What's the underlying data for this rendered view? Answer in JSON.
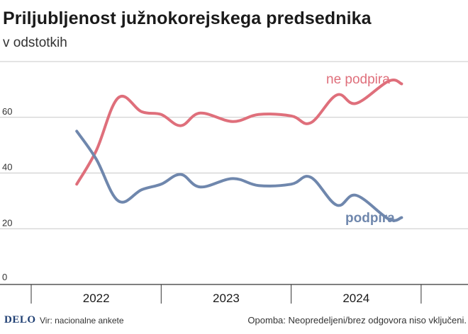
{
  "title": "Priljubljenost južnokorejskega predsednika",
  "subtitle": "v odstotkih",
  "source": "Vir: nacionalne ankete",
  "note": "Opomba: Neopredeljeni/brez odgovora niso vključeni.",
  "logo": "DELO",
  "colors": {
    "not_support": "#df6f7b",
    "support": "#6f87ad",
    "grid": "#c8c8c8",
    "text": "#1a1a1a"
  },
  "chart_data": {
    "type": "line",
    "title": "Priljubljenost južnokorejskega predsednika",
    "subtitle": "v odstotkih",
    "xlabel": "",
    "ylabel": "",
    "ylim": [
      0,
      80
    ],
    "yticks": [
      0,
      20,
      40,
      60
    ],
    "grid": true,
    "x_periods": [
      "2022",
      "2023",
      "2024"
    ],
    "series": [
      {
        "name": "ne podpira",
        "color": "#df6f7b",
        "points": [
          {
            "x": 2022.35,
            "y": 36
          },
          {
            "x": 2022.5,
            "y": 48
          },
          {
            "x": 2022.67,
            "y": 67
          },
          {
            "x": 2022.85,
            "y": 62
          },
          {
            "x": 2023.0,
            "y": 61
          },
          {
            "x": 2023.15,
            "y": 57
          },
          {
            "x": 2023.3,
            "y": 61.5
          },
          {
            "x": 2023.55,
            "y": 58.5
          },
          {
            "x": 2023.75,
            "y": 61
          },
          {
            "x": 2024.0,
            "y": 60.5
          },
          {
            "x": 2024.15,
            "y": 58
          },
          {
            "x": 2024.35,
            "y": 68
          },
          {
            "x": 2024.5,
            "y": 65
          },
          {
            "x": 2024.75,
            "y": 73
          },
          {
            "x": 2024.85,
            "y": 72
          }
        ]
      },
      {
        "name": "podpira",
        "color": "#6f87ad",
        "points": [
          {
            "x": 2022.35,
            "y": 55
          },
          {
            "x": 2022.5,
            "y": 45
          },
          {
            "x": 2022.67,
            "y": 30
          },
          {
            "x": 2022.85,
            "y": 34
          },
          {
            "x": 2023.0,
            "y": 36
          },
          {
            "x": 2023.15,
            "y": 39.5
          },
          {
            "x": 2023.3,
            "y": 35
          },
          {
            "x": 2023.55,
            "y": 38
          },
          {
            "x": 2023.75,
            "y": 35.5
          },
          {
            "x": 2024.0,
            "y": 36
          },
          {
            "x": 2024.15,
            "y": 38.5
          },
          {
            "x": 2024.35,
            "y": 28.5
          },
          {
            "x": 2024.5,
            "y": 32
          },
          {
            "x": 2024.75,
            "y": 23.5
          },
          {
            "x": 2024.85,
            "y": 24
          }
        ]
      }
    ]
  }
}
